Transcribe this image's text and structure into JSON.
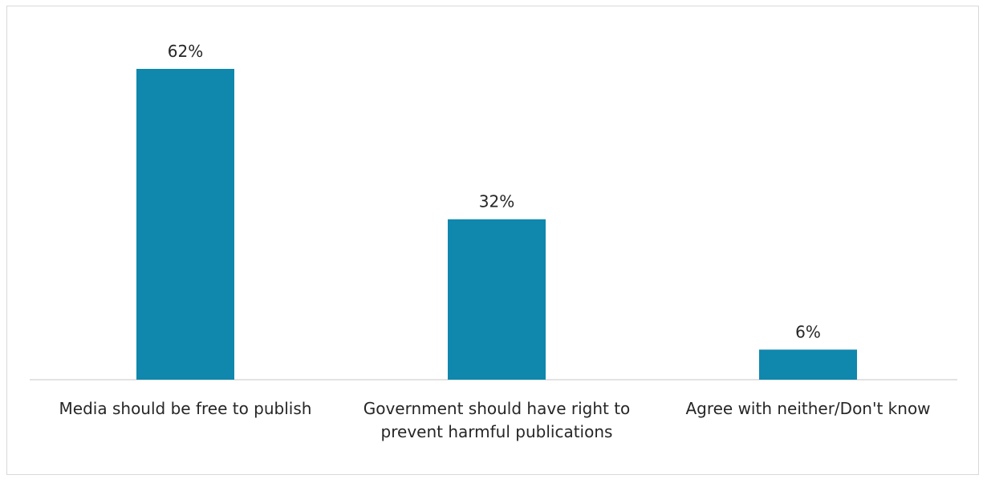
{
  "chart_data": {
    "type": "bar",
    "categories": [
      "Media should be free to publish",
      "Government should have right to prevent harmful publications",
      "Agree with neither/Don't know"
    ],
    "values": [
      62,
      32,
      6
    ],
    "data_labels": [
      "62%",
      "32%",
      "6%"
    ],
    "unit": "%",
    "title": "",
    "xlabel": "",
    "ylabel": "",
    "ylim": [
      0,
      62
    ],
    "grid": false,
    "legend": "none",
    "bar_color": "#1087ad",
    "axis_color": "#d9d9d9"
  }
}
